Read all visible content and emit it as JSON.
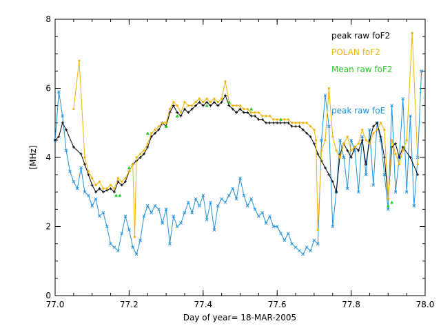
{
  "chart_data": {
    "type": "line",
    "title": "",
    "xlabel": "Day of year= 18-MAR-2005",
    "ylabel": "[MHz]",
    "xlim": [
      77.0,
      78.0
    ],
    "ylim": [
      0,
      8
    ],
    "x_ticks": [
      77.0,
      77.2,
      77.4,
      77.6,
      77.8,
      78.0
    ],
    "x_tick_labels": [
      "77.0",
      "77.2",
      "77.4",
      "77.6",
      "77.8",
      "78.0"
    ],
    "y_ticks": [
      0,
      2,
      4,
      6,
      8
    ],
    "y_tick_labels": [
      "0",
      "2",
      "4",
      "6",
      "8"
    ],
    "grid": false,
    "legend_position": "top-right",
    "series": [
      {
        "name": "peak raw foF2",
        "color": "#000000",
        "marker": "plus",
        "x": [
          77.0,
          77.01,
          77.02,
          77.03,
          77.05,
          77.07,
          77.08,
          77.09,
          77.1,
          77.11,
          77.12,
          77.13,
          77.14,
          77.15,
          77.16,
          77.17,
          77.18,
          77.19,
          77.2,
          77.21,
          77.22,
          77.23,
          77.24,
          77.25,
          77.26,
          77.27,
          77.28,
          77.29,
          77.3,
          77.31,
          77.32,
          77.33,
          77.34,
          77.35,
          77.36,
          77.37,
          77.38,
          77.39,
          77.4,
          77.41,
          77.42,
          77.43,
          77.44,
          77.45,
          77.46,
          77.47,
          77.48,
          77.49,
          77.5,
          77.51,
          77.52,
          77.53,
          77.54,
          77.55,
          77.56,
          77.57,
          77.58,
          77.59,
          77.6,
          77.61,
          77.62,
          77.63,
          77.64,
          77.65,
          77.66,
          77.67,
          77.68,
          77.69,
          77.7,
          77.71,
          77.72,
          77.73,
          77.74,
          77.75,
          77.76,
          77.77,
          77.78,
          77.79,
          77.8,
          77.81,
          77.82,
          77.83,
          77.84,
          77.85,
          77.86,
          77.87,
          77.88,
          77.89,
          77.9,
          77.91,
          77.92,
          77.93,
          77.94,
          77.96,
          77.98
        ],
        "y": [
          4.5,
          4.6,
          5.0,
          4.8,
          4.3,
          4.1,
          3.8,
          3.5,
          3.2,
          3.0,
          3.1,
          3.0,
          3.05,
          3.1,
          3.0,
          3.3,
          3.2,
          3.3,
          3.6,
          3.8,
          3.9,
          4.0,
          4.1,
          4.3,
          4.6,
          4.7,
          4.8,
          5.0,
          4.9,
          5.3,
          5.5,
          5.3,
          5.2,
          5.4,
          5.3,
          5.4,
          5.5,
          5.6,
          5.5,
          5.6,
          5.5,
          5.6,
          5.5,
          5.6,
          5.8,
          5.5,
          5.4,
          5.3,
          5.4,
          5.3,
          5.3,
          5.2,
          5.2,
          5.1,
          5.1,
          5.0,
          5.0,
          5.0,
          5.0,
          5.0,
          5.0,
          5.0,
          4.9,
          4.9,
          4.9,
          4.8,
          4.7,
          4.6,
          4.4,
          4.1,
          3.9,
          3.7,
          3.5,
          3.3,
          3.0,
          4.1,
          4.4,
          4.2,
          4.0,
          4.3,
          4.2,
          4.5,
          3.8,
          4.5,
          4.9,
          5.0,
          4.6,
          4.0,
          2.8,
          4.3,
          4.4,
          4.0,
          4.3,
          4.0,
          3.5
        ]
      },
      {
        "name": "POLAN foF2",
        "color": "#f0b400",
        "marker": "dot",
        "x": [
          77.05,
          77.065,
          77.08,
          77.09,
          77.1,
          77.11,
          77.12,
          77.13,
          77.14,
          77.15,
          77.16,
          77.17,
          77.18,
          77.19,
          77.2,
          77.21,
          77.215,
          77.22,
          77.23,
          77.24,
          77.25,
          77.26,
          77.27,
          77.28,
          77.29,
          77.3,
          77.31,
          77.32,
          77.33,
          77.34,
          77.35,
          77.36,
          77.37,
          77.38,
          77.39,
          77.4,
          77.41,
          77.42,
          77.43,
          77.44,
          77.45,
          77.46,
          77.47,
          77.48,
          77.49,
          77.5,
          77.51,
          77.52,
          77.53,
          77.54,
          77.55,
          77.56,
          77.57,
          77.58,
          77.59,
          77.6,
          77.61,
          77.62,
          77.63,
          77.64,
          77.65,
          77.66,
          77.67,
          77.68,
          77.69,
          77.7,
          77.705,
          77.71,
          77.72,
          77.73,
          77.74,
          77.75,
          77.76,
          77.77,
          77.78,
          77.79,
          77.8,
          77.81,
          77.82,
          77.83,
          77.84,
          77.85,
          77.86,
          77.87,
          77.88,
          77.89,
          77.9,
          77.91,
          77.92,
          77.93,
          77.94,
          77.95,
          77.965,
          77.98
        ],
        "y": [
          5.4,
          6.8,
          4.0,
          3.6,
          3.4,
          3.2,
          3.3,
          3.1,
          3.1,
          3.2,
          3.1,
          3.4,
          3.3,
          3.4,
          3.6,
          3.8,
          1.7,
          4.0,
          4.1,
          4.2,
          4.4,
          4.7,
          4.8,
          4.9,
          5.0,
          5.0,
          5.4,
          5.6,
          5.5,
          5.3,
          5.6,
          5.5,
          5.5,
          5.6,
          5.7,
          5.6,
          5.7,
          5.6,
          5.7,
          5.6,
          5.7,
          6.2,
          5.6,
          5.5,
          5.5,
          5.5,
          5.4,
          5.4,
          5.3,
          5.3,
          5.3,
          5.2,
          5.2,
          5.2,
          5.1,
          5.1,
          5.1,
          5.1,
          5.1,
          5.0,
          5.0,
          5.0,
          5.0,
          5.0,
          4.9,
          4.8,
          4.5,
          1.9,
          4.2,
          4.5,
          6.0,
          4.6,
          4.2,
          4.0,
          4.4,
          4.6,
          4.2,
          4.3,
          4.4,
          4.8,
          4.5,
          4.4,
          4.7,
          4.8,
          5.0,
          4.8,
          2.8,
          4.5,
          4.1,
          3.8,
          4.2,
          4.5,
          7.6,
          3.8
        ]
      },
      {
        "name": "Mean raw foF2",
        "color": "#22cc22",
        "marker": "triangle",
        "x": [
          77.165,
          77.175,
          77.2,
          77.25,
          77.3,
          77.33,
          77.41,
          77.47,
          77.53,
          77.61,
          77.9,
          77.91
        ],
        "y": [
          2.9,
          2.9,
          3.7,
          4.7,
          4.9,
          5.2,
          5.5,
          5.6,
          5.4,
          5.1,
          2.6,
          2.7
        ]
      },
      {
        "name": "peak raw foE",
        "color": "#1e90dd",
        "marker": "x",
        "x": [
          77.0,
          77.01,
          77.02,
          77.03,
          77.04,
          77.05,
          77.06,
          77.07,
          77.08,
          77.09,
          77.1,
          77.11,
          77.12,
          77.13,
          77.14,
          77.15,
          77.16,
          77.17,
          77.18,
          77.19,
          77.2,
          77.21,
          77.22,
          77.23,
          77.24,
          77.25,
          77.26,
          77.27,
          77.28,
          77.29,
          77.3,
          77.31,
          77.32,
          77.33,
          77.34,
          77.35,
          77.36,
          77.37,
          77.38,
          77.39,
          77.4,
          77.41,
          77.42,
          77.43,
          77.44,
          77.45,
          77.46,
          77.47,
          77.48,
          77.49,
          77.5,
          77.51,
          77.52,
          77.53,
          77.54,
          77.55,
          77.56,
          77.57,
          77.58,
          77.59,
          77.6,
          77.61,
          77.62,
          77.63,
          77.64,
          77.65,
          77.66,
          77.67,
          77.68,
          77.69,
          77.7,
          77.71,
          77.72,
          77.73,
          77.74,
          77.75,
          77.76,
          77.77,
          77.78,
          77.79,
          77.8,
          77.81,
          77.82,
          77.83,
          77.84,
          77.85,
          77.86,
          77.87,
          77.88,
          77.89,
          77.9,
          77.91,
          77.92,
          77.93,
          77.94,
          77.95,
          77.96,
          77.97,
          77.98,
          77.99
        ],
        "y": [
          4.5,
          5.9,
          5.2,
          4.2,
          3.6,
          3.3,
          3.1,
          3.7,
          3.0,
          2.9,
          2.6,
          2.8,
          2.3,
          2.4,
          2.0,
          1.5,
          1.4,
          1.3,
          1.8,
          2.3,
          1.9,
          1.4,
          1.2,
          1.6,
          2.3,
          2.6,
          2.4,
          2.6,
          2.5,
          2.1,
          2.5,
          1.5,
          2.3,
          2.0,
          2.1,
          2.4,
          2.7,
          2.4,
          2.8,
          2.6,
          2.9,
          2.2,
          2.7,
          1.9,
          2.6,
          2.8,
          2.7,
          2.9,
          3.1,
          2.8,
          3.4,
          2.9,
          2.6,
          2.8,
          2.5,
          2.3,
          2.4,
          2.1,
          2.3,
          2.0,
          2.0,
          1.8,
          1.6,
          1.8,
          1.5,
          1.4,
          1.3,
          1.2,
          1.4,
          1.3,
          1.6,
          1.5,
          4.5,
          5.8,
          4.9,
          2.0,
          3.0,
          4.5,
          4.0,
          3.1,
          4.5,
          4.2,
          3.0,
          4.6,
          3.5,
          4.8,
          3.2,
          5.0,
          4.5,
          3.5,
          2.5,
          5.5,
          3.0,
          4.0,
          5.7,
          3.0,
          5.2,
          2.6,
          4.0,
          6.5
        ]
      }
    ]
  }
}
